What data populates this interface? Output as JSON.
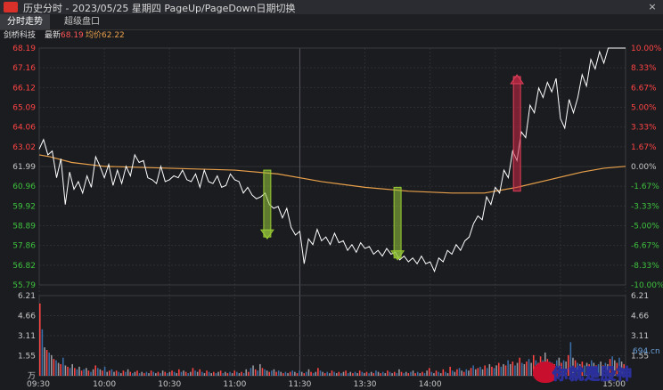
{
  "window": {
    "title": "历史分时 - 2023/05/25 星期四 PageUp/PageDown日期切换",
    "close_label": "×"
  },
  "tabs": [
    {
      "label": "分时走势",
      "active": true
    },
    {
      "label": "超级盘口",
      "active": false
    }
  ],
  "info": {
    "stock_name": "剑桥科技",
    "latest_label": "最新",
    "latest_value": "68.19",
    "avg_label": "均价",
    "avg_value": "62.22"
  },
  "colors": {
    "up": "#ff4444",
    "down": "#3ec23e",
    "price_line": "#ffffff",
    "avg_line": "#e8a04a",
    "volume_bar": "#3a6ea8",
    "grid": "#2e2f34"
  },
  "chart_data": {
    "type": "line",
    "prev_close": 61.99,
    "price_axis": [
      "68.19",
      "67.16",
      "66.12",
      "65.09",
      "64.06",
      "63.02",
      "61.99",
      "60.96",
      "59.92",
      "58.89",
      "57.86",
      "56.82",
      "55.79"
    ],
    "pct_axis": [
      "10.00%",
      "8.33%",
      "6.67%",
      "5.00%",
      "3.33%",
      "1.67%",
      "0.00%",
      "-1.67%",
      "-3.33%",
      "-5.00%",
      "-6.67%",
      "-8.33%",
      "-10.00%"
    ],
    "volume_axis": [
      "6.21",
      "4.66",
      "3.11",
      "1.55",
      "万"
    ],
    "time_axis": [
      "09:30",
      "10:00",
      "10:30",
      "11:00",
      "11:30",
      "13:30",
      "14:00",
      "15:00"
    ],
    "price_series": [
      {
        "t": 0,
        "v": 62.9
      },
      {
        "t": 2,
        "v": 63.4
      },
      {
        "t": 4,
        "v": 62.6
      },
      {
        "t": 6,
        "v": 62.8
      },
      {
        "t": 8,
        "v": 61.4
      },
      {
        "t": 10,
        "v": 62.4
      },
      {
        "t": 12,
        "v": 60.0
      },
      {
        "t": 14,
        "v": 61.7
      },
      {
        "t": 16,
        "v": 60.8
      },
      {
        "t": 18,
        "v": 61.2
      },
      {
        "t": 20,
        "v": 60.6
      },
      {
        "t": 22,
        "v": 61.5
      },
      {
        "t": 24,
        "v": 60.9
      },
      {
        "t": 26,
        "v": 62.5
      },
      {
        "t": 28,
        "v": 62.0
      },
      {
        "t": 30,
        "v": 61.4
      },
      {
        "t": 32,
        "v": 62.1
      },
      {
        "t": 34,
        "v": 61.0
      },
      {
        "t": 36,
        "v": 61.8
      },
      {
        "t": 38,
        "v": 61.1
      },
      {
        "t": 40,
        "v": 62.0
      },
      {
        "t": 42,
        "v": 61.5
      },
      {
        "t": 44,
        "v": 62.6
      },
      {
        "t": 46,
        "v": 62.2
      },
      {
        "t": 48,
        "v": 62.3
      },
      {
        "t": 50,
        "v": 61.4
      },
      {
        "t": 52,
        "v": 61.3
      },
      {
        "t": 54,
        "v": 61.1
      },
      {
        "t": 56,
        "v": 62.0
      },
      {
        "t": 58,
        "v": 61.2
      },
      {
        "t": 60,
        "v": 61.3
      },
      {
        "t": 62,
        "v": 61.5
      },
      {
        "t": 64,
        "v": 61.4
      },
      {
        "t": 66,
        "v": 61.8
      },
      {
        "t": 68,
        "v": 61.3
      },
      {
        "t": 70,
        "v": 61.2
      },
      {
        "t": 72,
        "v": 61.6
      },
      {
        "t": 74,
        "v": 60.9
      },
      {
        "t": 76,
        "v": 61.8
      },
      {
        "t": 78,
        "v": 61.2
      },
      {
        "t": 80,
        "v": 61.1
      },
      {
        "t": 82,
        "v": 61.5
      },
      {
        "t": 84,
        "v": 60.9
      },
      {
        "t": 86,
        "v": 61.0
      },
      {
        "t": 88,
        "v": 61.6
      },
      {
        "t": 90,
        "v": 61.3
      },
      {
        "t": 92,
        "v": 61.2
      },
      {
        "t": 94,
        "v": 60.6
      },
      {
        "t": 96,
        "v": 60.9
      },
      {
        "t": 98,
        "v": 60.5
      },
      {
        "t": 100,
        "v": 60.3
      },
      {
        "t": 102,
        "v": 60.4
      },
      {
        "t": 104,
        "v": 60.6
      },
      {
        "t": 106,
        "v": 60.0
      },
      {
        "t": 108,
        "v": 59.8
      },
      {
        "t": 110,
        "v": 59.9
      },
      {
        "t": 112,
        "v": 59.3
      },
      {
        "t": 114,
        "v": 59.8
      },
      {
        "t": 116,
        "v": 58.8
      },
      {
        "t": 118,
        "v": 58.4
      },
      {
        "t": 120,
        "v": 58.6
      },
      {
        "t": 122,
        "v": 56.9
      },
      {
        "t": 124,
        "v": 58.2
      },
      {
        "t": 126,
        "v": 57.9
      },
      {
        "t": 128,
        "v": 58.7
      },
      {
        "t": 130,
        "v": 58.1
      },
      {
        "t": 132,
        "v": 58.3
      },
      {
        "t": 134,
        "v": 57.9
      },
      {
        "t": 136,
        "v": 58.5
      },
      {
        "t": 138,
        "v": 58.0
      },
      {
        "t": 140,
        "v": 58.1
      },
      {
        "t": 142,
        "v": 57.6
      },
      {
        "t": 144,
        "v": 57.9
      },
      {
        "t": 146,
        "v": 57.5
      },
      {
        "t": 148,
        "v": 58.0
      },
      {
        "t": 150,
        "v": 57.7
      },
      {
        "t": 152,
        "v": 57.8
      },
      {
        "t": 154,
        "v": 57.4
      },
      {
        "t": 156,
        "v": 57.6
      },
      {
        "t": 158,
        "v": 57.3
      },
      {
        "t": 160,
        "v": 57.7
      },
      {
        "t": 162,
        "v": 57.4
      },
      {
        "t": 164,
        "v": 57.5
      },
      {
        "t": 166,
        "v": 57.1
      },
      {
        "t": 168,
        "v": 57.3
      },
      {
        "t": 170,
        "v": 57.0
      },
      {
        "t": 172,
        "v": 57.2
      },
      {
        "t": 174,
        "v": 56.9
      },
      {
        "t": 176,
        "v": 57.3
      },
      {
        "t": 178,
        "v": 56.9
      },
      {
        "t": 180,
        "v": 57.0
      },
      {
        "t": 182,
        "v": 56.5
      },
      {
        "t": 184,
        "v": 57.2
      },
      {
        "t": 186,
        "v": 57.0
      },
      {
        "t": 188,
        "v": 57.6
      },
      {
        "t": 190,
        "v": 57.4
      },
      {
        "t": 192,
        "v": 57.9
      },
      {
        "t": 194,
        "v": 57.6
      },
      {
        "t": 196,
        "v": 58.1
      },
      {
        "t": 198,
        "v": 58.3
      },
      {
        "t": 200,
        "v": 59.0
      },
      {
        "t": 202,
        "v": 59.4
      },
      {
        "t": 204,
        "v": 59.2
      },
      {
        "t": 206,
        "v": 60.4
      },
      {
        "t": 208,
        "v": 60.0
      },
      {
        "t": 210,
        "v": 60.9
      },
      {
        "t": 212,
        "v": 60.6
      },
      {
        "t": 214,
        "v": 61.8
      },
      {
        "t": 216,
        "v": 61.4
      },
      {
        "t": 218,
        "v": 62.8
      },
      {
        "t": 220,
        "v": 62.3
      },
      {
        "t": 222,
        "v": 63.8
      },
      {
        "t": 224,
        "v": 63.5
      },
      {
        "t": 226,
        "v": 65.2
      },
      {
        "t": 228,
        "v": 64.8
      },
      {
        "t": 230,
        "v": 66.1
      },
      {
        "t": 232,
        "v": 65.6
      },
      {
        "t": 234,
        "v": 66.4
      },
      {
        "t": 236,
        "v": 65.9
      },
      {
        "t": 238,
        "v": 66.6
      },
      {
        "t": 240,
        "v": 64.5
      },
      {
        "t": 242,
        "v": 64.0
      },
      {
        "t": 244,
        "v": 65.5
      },
      {
        "t": 246,
        "v": 64.8
      },
      {
        "t": 248,
        "v": 65.6
      },
      {
        "t": 250,
        "v": 66.8
      },
      {
        "t": 252,
        "v": 66.2
      },
      {
        "t": 254,
        "v": 67.6
      },
      {
        "t": 256,
        "v": 67.1
      },
      {
        "t": 258,
        "v": 68.0
      },
      {
        "t": 260,
        "v": 67.4
      },
      {
        "t": 262,
        "v": 68.19
      },
      {
        "t": 266,
        "v": 68.19
      },
      {
        "t": 270,
        "v": 68.19
      }
    ],
    "avg_series": [
      {
        "t": 0,
        "v": 62.6
      },
      {
        "t": 5,
        "v": 62.5
      },
      {
        "t": 15,
        "v": 62.2
      },
      {
        "t": 30,
        "v": 62.0
      },
      {
        "t": 60,
        "v": 61.9
      },
      {
        "t": 90,
        "v": 61.8
      },
      {
        "t": 110,
        "v": 61.6
      },
      {
        "t": 130,
        "v": 61.2
      },
      {
        "t": 150,
        "v": 60.9
      },
      {
        "t": 170,
        "v": 60.7
      },
      {
        "t": 190,
        "v": 60.6
      },
      {
        "t": 205,
        "v": 60.6
      },
      {
        "t": 220,
        "v": 60.9
      },
      {
        "t": 235,
        "v": 61.3
      },
      {
        "t": 250,
        "v": 61.7
      },
      {
        "t": 260,
        "v": 61.9
      },
      {
        "t": 270,
        "v": 62.0
      }
    ],
    "volume": [
      5.6,
      3.6,
      2.2,
      2.0,
      1.8,
      1.6,
      1.3,
      1.2,
      1.0,
      0.9,
      1.4,
      0.8,
      0.7,
      0.6,
      0.9,
      0.6,
      0.5,
      0.7,
      0.4,
      0.5,
      0.6,
      0.4,
      0.3,
      0.5,
      0.8,
      0.6,
      0.5,
      0.4,
      0.7,
      0.3,
      0.4,
      0.5,
      0.3,
      0.4,
      0.3,
      0.2,
      0.4,
      0.3,
      0.5,
      0.3,
      0.2,
      0.3,
      0.4,
      0.2,
      0.3,
      0.2,
      0.3,
      0.2,
      0.4,
      0.3,
      0.2,
      0.3,
      0.2,
      0.4,
      0.3,
      0.2,
      0.3,
      0.4,
      0.3,
      0.2,
      0.5,
      0.3,
      0.4,
      0.3,
      0.2,
      0.3,
      0.6,
      0.4,
      0.3,
      0.5,
      0.3,
      0.2,
      0.4,
      0.3,
      0.2,
      0.3,
      0.2,
      0.3,
      0.4,
      0.2,
      0.3,
      0.2,
      0.3,
      0.2,
      0.4,
      0.3,
      0.2,
      0.3,
      0.2,
      0.5,
      0.3,
      0.6,
      0.8,
      0.5,
      0.4,
      0.9,
      0.6,
      0.5,
      0.4,
      0.3,
      0.4,
      0.5,
      0.3,
      0.4,
      0.3,
      0.2,
      0.3,
      0.2,
      0.3,
      0.4,
      0.3,
      0.2,
      0.4,
      0.3,
      0.2,
      0.3,
      0.5,
      0.3,
      0.2,
      0.3,
      0.6,
      0.4,
      0.3,
      0.2,
      0.3,
      0.2,
      0.4,
      0.3,
      0.2,
      0.3,
      0.2,
      0.3,
      0.4,
      0.2,
      0.3,
      0.2,
      0.3,
      0.2,
      0.4,
      0.3,
      0.2,
      0.3,
      0.2,
      0.3,
      0.2,
      0.4,
      0.3,
      0.2,
      0.3,
      0.2,
      0.4,
      0.3,
      0.2,
      0.3,
      0.2,
      0.5,
      0.3,
      0.2,
      0.3,
      0.2,
      0.3,
      0.4,
      0.2,
      0.3,
      0.2,
      0.3,
      0.2,
      0.4,
      0.6,
      0.3,
      0.2,
      0.4,
      0.3,
      0.2,
      0.5,
      0.3,
      0.2,
      0.7,
      0.4,
      0.3,
      0.5,
      0.6,
      0.4,
      0.3,
      0.5,
      0.4,
      0.6,
      0.8,
      0.5,
      0.6,
      0.7,
      0.5,
      0.8,
      0.6,
      0.9,
      0.7,
      0.6,
      0.8,
      1.0,
      0.7,
      0.9,
      0.8,
      1.2,
      0.9,
      1.1,
      0.8,
      1.0,
      1.4,
      1.0,
      0.9,
      1.1,
      1.3,
      1.0,
      1.6,
      1.2,
      1.0,
      1.5,
      1.2,
      1.8,
      1.3,
      1.1,
      1.0,
      0.9,
      1.2,
      1.4,
      1.0,
      1.2,
      1.1,
      1.6,
      2.6,
      1.4,
      1.2,
      1.0,
      0.9,
      1.1,
      0.8,
      1.0,
      0.9,
      1.2,
      1.0,
      0.8,
      0.9,
      1.1,
      0.8,
      1.0,
      0.9,
      1.3,
      1.5,
      1.2,
      1.0,
      1.4,
      1.1,
      0.9
    ]
  },
  "markers": [
    {
      "type": "arrow",
      "color": "green",
      "x": "11:15",
      "from": 61.8,
      "to": 58.3
    },
    {
      "type": "arrow",
      "color": "green",
      "x": "13:15",
      "from": 60.9,
      "to": 57.2
    },
    {
      "type": "arrow",
      "color": "red",
      "x": "14:40",
      "from": 60.7,
      "to": 66.7
    }
  ],
  "watermark": {
    "text": "你就是股神",
    "site": "694.cn"
  }
}
